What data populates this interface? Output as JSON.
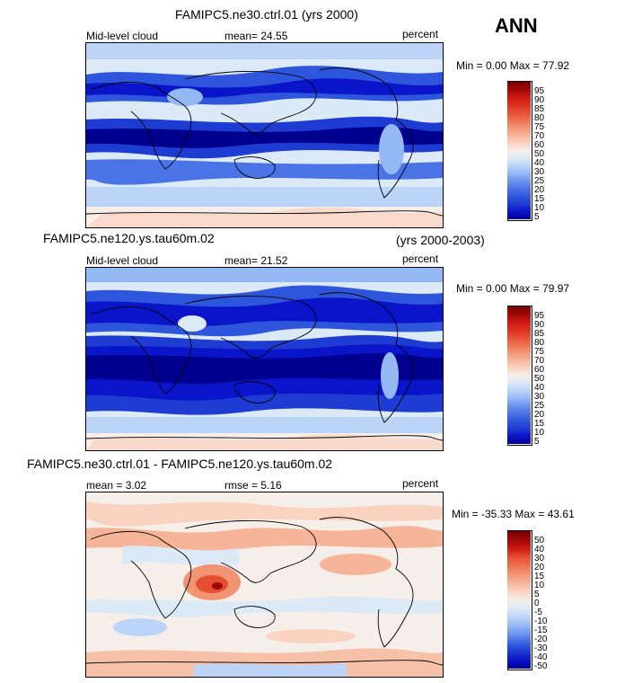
{
  "season": "ANN",
  "palettes": {
    "abs": [
      "#00008e",
      "#0a14c8",
      "#1e3cd2",
      "#2e56dc",
      "#4a74e6",
      "#6a94ee",
      "#94b8f4",
      "#bcd4f8",
      "#dceaf8",
      "#f6eee8",
      "#fad2c0",
      "#f6b498",
      "#f29474",
      "#ec7050",
      "#e64e32",
      "#dc2e1e",
      "#cc1812",
      "#a00808",
      "#780000"
    ],
    "diff": [
      "#00008e",
      "#0a14c8",
      "#1e3cd2",
      "#3a64e0",
      "#6a94ee",
      "#94b8f4",
      "#bcd4f8",
      "#dceaf8",
      "#f6eee8",
      "#fad2c0",
      "#f6b498",
      "#f29474",
      "#ec7050",
      "#e64e32",
      "#cc1812",
      "#a00808",
      "#780000"
    ]
  },
  "panels": [
    {
      "title": "FAMIPC5.ne30.ctrl.01 (yrs 2000)",
      "title_right": "",
      "left_label": "Mid-level cloud",
      "mid_label": "mean=  24.55",
      "units": "percent",
      "minmax": "Min =   0.00 Max =  77.92",
      "levels": [
        "95",
        "90",
        "85",
        "80",
        "75",
        "70",
        "60",
        "50",
        "40",
        "30",
        "25",
        "20",
        "15",
        "10",
        "5"
      ]
    },
    {
      "title": "FAMIPC5.ne120.ys.tau60m.02",
      "title_right": "(yrs 2000-2003)",
      "left_label": "Mid-level cloud",
      "mid_label": "mean=  21.52",
      "units": "percent",
      "minmax": "Min =   0.00 Max =  79.97",
      "levels": [
        "95",
        "90",
        "85",
        "80",
        "75",
        "70",
        "60",
        "50",
        "40",
        "30",
        "25",
        "20",
        "15",
        "10",
        "5"
      ]
    },
    {
      "title": "FAMIPC5.ne30.ctrl.01 - FAMIPC5.ne120.ys.tau60m.02",
      "title_right": "",
      "left_label": "mean =  3.02",
      "mid_label": "rmse =  5.16",
      "units": "percent",
      "minmax": "Min = -35.33 Max =  43.61",
      "levels": [
        "50",
        "40",
        "30",
        "20",
        "15",
        "10",
        "5",
        "0",
        "-5",
        "-10",
        "-15",
        "-20",
        "-30",
        "-40",
        "-50"
      ]
    }
  ],
  "chart_data": [
    {
      "type": "heatmap",
      "title": "FAMIPC5.ne30.ctrl.01 (yrs 2000)",
      "variable": "Mid-level cloud",
      "units": "percent",
      "season": "ANN",
      "mean": 24.55,
      "min": 0.0,
      "max": 77.92,
      "colorbar_levels": [
        5,
        10,
        15,
        20,
        25,
        30,
        40,
        50,
        60,
        70,
        75,
        80,
        85,
        90,
        95
      ]
    },
    {
      "type": "heatmap",
      "title": "FAMIPC5.ne120.ys.tau60m.02",
      "years": "(yrs 2000-2003)",
      "variable": "Mid-level cloud",
      "units": "percent",
      "mean": 21.52,
      "min": 0.0,
      "max": 79.97,
      "colorbar_levels": [
        5,
        10,
        15,
        20,
        25,
        30,
        40,
        50,
        60,
        70,
        75,
        80,
        85,
        90,
        95
      ]
    },
    {
      "type": "heatmap",
      "title": "FAMIPC5.ne30.ctrl.01 - FAMIPC5.ne120.ys.tau60m.02",
      "units": "percent",
      "mean": 3.02,
      "rmse": 5.16,
      "min": -35.33,
      "max": 43.61,
      "colorbar_levels": [
        -50,
        -40,
        -30,
        -20,
        -15,
        -10,
        -5,
        0,
        5,
        10,
        15,
        20,
        30,
        40,
        50
      ]
    }
  ]
}
